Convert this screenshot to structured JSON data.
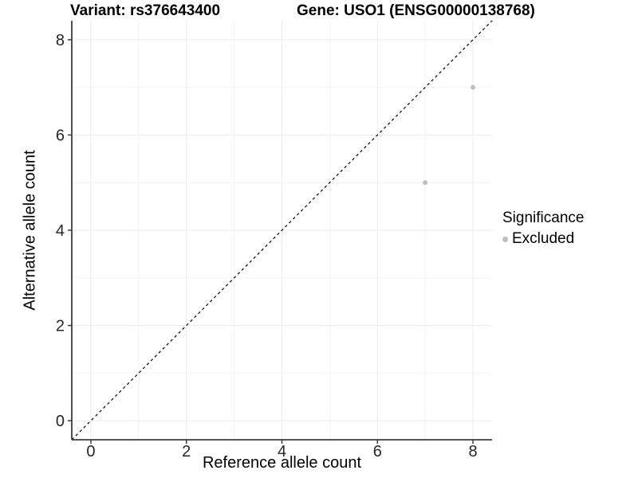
{
  "chart_data": {
    "type": "scatter",
    "title_variant": "Variant: rs376643400",
    "title_gene": "Gene: USO1 (ENSG00000138768)",
    "xlabel": "Reference allele count",
    "ylabel": "Alternative allele count",
    "xlim": [
      -0.4,
      8.4
    ],
    "ylim": [
      -0.4,
      8.4
    ],
    "x_ticks": [
      0,
      2,
      4,
      6,
      8
    ],
    "y_ticks": [
      0,
      2,
      4,
      6,
      8
    ],
    "minor_ticks": [
      1,
      3,
      5,
      7
    ],
    "grid": true,
    "reference_line": {
      "type": "identity",
      "slope": 1,
      "intercept": 0,
      "style": "dashed",
      "color": "#000000"
    },
    "series": [
      {
        "name": "Excluded",
        "color": "#bebebe",
        "points": [
          {
            "x": 7,
            "y": 5
          },
          {
            "x": 8,
            "y": 7
          }
        ]
      }
    ],
    "legend": {
      "title": "Significance",
      "position": "right",
      "items": [
        {
          "label": "Excluded",
          "color": "#bebebe"
        }
      ]
    },
    "colors": {
      "background": "#ffffff",
      "major_grid": "#ebebeb",
      "minor_grid": "#f2f2f2",
      "axis_line": "#3c3c3c",
      "tick_label": "#262626",
      "point": "#bebebe"
    }
  }
}
